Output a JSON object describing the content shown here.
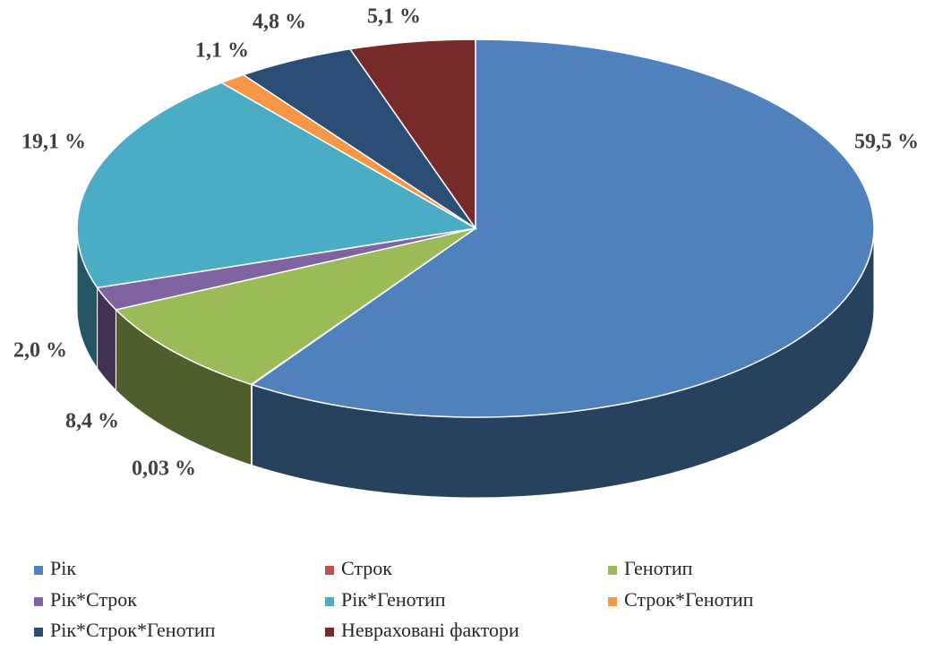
{
  "chart_data": {
    "type": "pie",
    "three_d": true,
    "categories": [
      "Рік",
      "Строк",
      "Генотип",
      "Рік*Строк",
      "Рік*Генотип",
      "Строк*Генотип",
      "Рік*Строк*Генотип",
      "Невраховані фактори"
    ],
    "values": [
      59.5,
      0.03,
      8.4,
      2.0,
      19.1,
      1.1,
      4.8,
      5.1
    ],
    "value_labels": [
      "59,5 %",
      "0,03 %",
      "8,4 %",
      "2,0 %",
      "19,1 %",
      "1,1 %",
      "4,8 %",
      "5,1 %"
    ],
    "colors": [
      "#4f81bd",
      "#c0504d",
      "#9bbb59",
      "#8064a2",
      "#4bacc6",
      "#f79646",
      "#2c4d75",
      "#772c2a"
    ],
    "legend": "bottom"
  }
}
